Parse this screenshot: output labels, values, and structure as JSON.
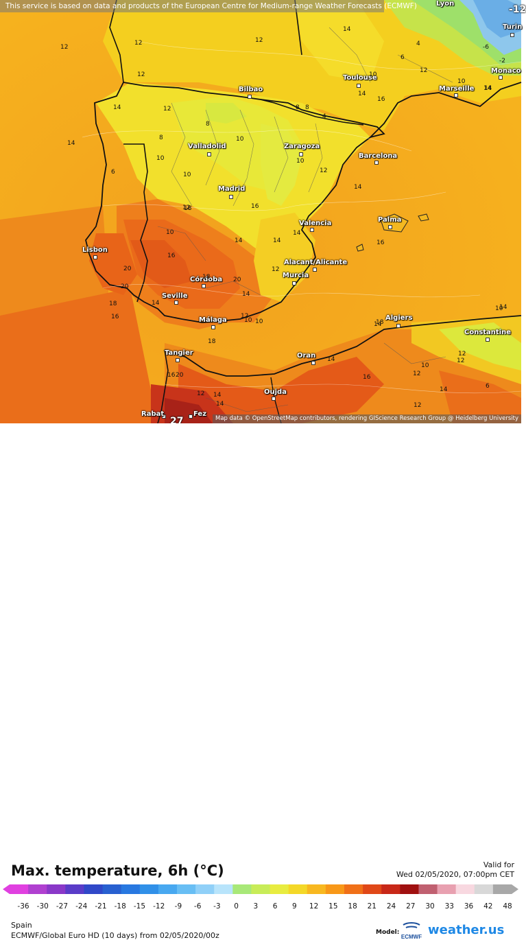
{
  "attribution_top": "This service is based on data and products of the European Centre for Medium-range Weather Forecasts (ECMWF)",
  "attribution_bottom": "Map data © OpenStreetMap contributors, rendering GIScience Research Group @ Heidelberg University",
  "title": "Max. temperature, 6h (°C)",
  "valid_label": "Valid for",
  "valid_time": "Wed 02/05/2020, 07:00pm CET",
  "region": "Spain",
  "model_line": "ECMWF/Global Euro HD (10 days) from 02/05/2020/00z",
  "model_label": "Model:",
  "ecmwf_text": "ECMWF",
  "brand": "weather.us",
  "scale_ticks": [
    "-36",
    "-30",
    "-27",
    "-24",
    "-21",
    "-18",
    "-15",
    "-12",
    "-9",
    "-6",
    "-3",
    "0",
    "3",
    "6",
    "9",
    "12",
    "15",
    "18",
    "21",
    "24",
    "27",
    "30",
    "33",
    "36",
    "42",
    "48"
  ],
  "scale_colors": [
    "#e040e0",
    "#b040d0",
    "#8a38c8",
    "#5a3cc8",
    "#3048c8",
    "#2860d0",
    "#2878e0",
    "#3090e8",
    "#48a8f0",
    "#68bef4",
    "#90d0f8",
    "#b8e4fb",
    "#a8e878",
    "#c8ec58",
    "#e8ec40",
    "#f4d828",
    "#f8b820",
    "#f89818",
    "#f07018",
    "#e04818",
    "#c82818",
    "#a01010",
    "#c06070",
    "#e8a0b0",
    "#f8d8e0",
    "#d8d8d8",
    "#a8a8a8"
  ],
  "cities": [
    {
      "name": "Bilbao"
    },
    {
      "name": "Toulouse"
    },
    {
      "name": "Marseille"
    },
    {
      "name": "Monaco"
    },
    {
      "name": "Turin"
    },
    {
      "name": "Valladolid"
    },
    {
      "name": "Zaragoza"
    },
    {
      "name": "Barcelona"
    },
    {
      "name": "Madrid"
    },
    {
      "name": "Valencia"
    },
    {
      "name": "Palma"
    },
    {
      "name": "Lisbon"
    },
    {
      "name": "Córdoba"
    },
    {
      "name": "Alacant/Alicante"
    },
    {
      "name": "Murcia"
    },
    {
      "name": "Seville"
    },
    {
      "name": "Málaga"
    },
    {
      "name": "Algiers"
    },
    {
      "name": "Constantine"
    },
    {
      "name": "Tangier"
    },
    {
      "name": "Oran"
    },
    {
      "name": "Oujda"
    },
    {
      "name": "Rabat"
    },
    {
      "name": "Fez"
    },
    {
      "name": "Lyon"
    }
  ],
  "isotherm_labels": [
    "12",
    "12",
    "12",
    "14",
    "14",
    "12",
    "8",
    "10",
    "10",
    "8",
    "6",
    "10",
    "12",
    "10",
    "12",
    "14",
    "14",
    "16",
    "14",
    "12",
    "10",
    "10",
    "12",
    "14",
    "16",
    "18",
    "20",
    "20",
    "18",
    "16",
    "14",
    "16",
    "18",
    "20",
    "14",
    "12",
    "10",
    "10",
    "12",
    "14",
    "14",
    "14",
    "16",
    "18",
    "18",
    "16",
    "14",
    "12",
    "14",
    "14",
    "16",
    "14",
    "12",
    "27",
    "-12",
    "6",
    "4",
    "8",
    "8",
    "4",
    "14",
    "10",
    "-6",
    "-2",
    "10",
    "14",
    "6",
    "12",
    "20",
    "12",
    "10",
    "12",
    "14"
  ]
}
